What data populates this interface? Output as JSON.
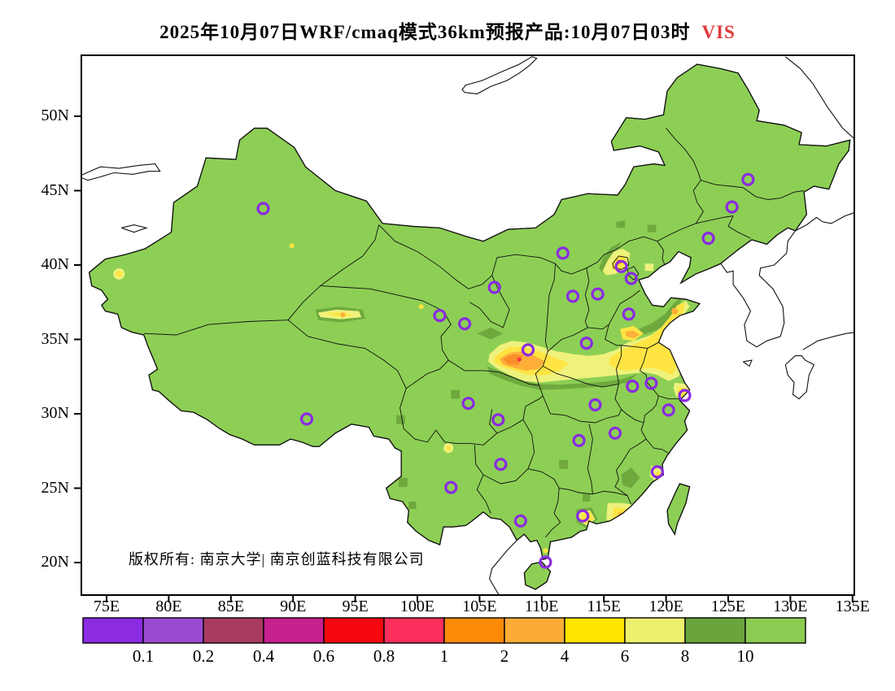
{
  "title": {
    "main": "2025年10月07日WRF/cmaq模式36km预报产品:10月07日03时",
    "tag": "VIS",
    "tag_color": "#e03a3a"
  },
  "copyright": "版权所有: 南京大学| 南京创蓝科技有限公司",
  "axes": {
    "lat_ticks": [
      {
        "label": "50N",
        "lat": 50
      },
      {
        "label": "45N",
        "lat": 45
      },
      {
        "label": "40N",
        "lat": 40
      },
      {
        "label": "35N",
        "lat": 35
      },
      {
        "label": "30N",
        "lat": 30
      },
      {
        "label": "25N",
        "lat": 25
      },
      {
        "label": "20N",
        "lat": 20
      }
    ],
    "lon_ticks": [
      {
        "label": "75E",
        "lon": 75
      },
      {
        "label": "80E",
        "lon": 80
      },
      {
        "label": "85E",
        "lon": 85
      },
      {
        "label": "90E",
        "lon": 90
      },
      {
        "label": "95E",
        "lon": 95
      },
      {
        "label": "100E",
        "lon": 100
      },
      {
        "label": "105E",
        "lon": 105
      },
      {
        "label": "110E",
        "lon": 110
      },
      {
        "label": "115E",
        "lon": 115
      },
      {
        "label": "120E",
        "lon": 120
      },
      {
        "label": "125E",
        "lon": 125
      },
      {
        "label": "130E",
        "lon": 130
      },
      {
        "label": "135E",
        "lon": 135
      }
    ]
  },
  "colorbar": {
    "labels": [
      "0.1",
      "0.2",
      "0.4",
      "0.6",
      "0.8",
      "1",
      "2",
      "4",
      "6",
      "8",
      "10"
    ],
    "colors": [
      "#8b2be2",
      "#9b4ad2",
      "#a93a62",
      "#c71f8e",
      "#f5070f",
      "#fb2e5c",
      "#fb8b07",
      "#fbac38",
      "#ffe400",
      "#edf06e",
      "#69a53c",
      "#8ccb52"
    ]
  },
  "map_colors": {
    "sea": "#ffffff",
    "land": "#8dcf55",
    "level_8_10": "#6fa93e",
    "level_6_8": "#eef27c",
    "level_4_6": "#ffe443",
    "level_2_4": "#fdaf3a",
    "level_1_2": "#f98e27",
    "level_lt_1": "#f4304a",
    "coast_border": "#111111",
    "marker": "#8a2be2"
  },
  "stations": [
    {
      "name": "urumqi",
      "lon": 87.6,
      "lat": 43.8
    },
    {
      "name": "harbin",
      "lon": 126.6,
      "lat": 45.75
    },
    {
      "name": "changchun",
      "lon": 125.3,
      "lat": 43.9
    },
    {
      "name": "shenyang",
      "lon": 123.4,
      "lat": 41.8
    },
    {
      "name": "beijing",
      "lon": 116.4,
      "lat": 39.9
    },
    {
      "name": "tianjin",
      "lon": 117.2,
      "lat": 39.1
    },
    {
      "name": "shijiazhuang",
      "lon": 114.5,
      "lat": 38.05
    },
    {
      "name": "taiyuan",
      "lon": 112.5,
      "lat": 37.9
    },
    {
      "name": "hohhot",
      "lon": 111.7,
      "lat": 40.8
    },
    {
      "name": "jinan",
      "lon": 117.0,
      "lat": 36.7
    },
    {
      "name": "zhengzhou",
      "lon": 113.6,
      "lat": 34.75
    },
    {
      "name": "xian",
      "lon": 108.9,
      "lat": 34.3
    },
    {
      "name": "yinchuan",
      "lon": 106.2,
      "lat": 38.5
    },
    {
      "name": "lanzhou",
      "lon": 103.8,
      "lat": 36.05
    },
    {
      "name": "xining",
      "lon": 101.8,
      "lat": 36.6
    },
    {
      "name": "lhasa",
      "lon": 91.1,
      "lat": 29.65
    },
    {
      "name": "chengdu",
      "lon": 104.1,
      "lat": 30.7
    },
    {
      "name": "chongqing",
      "lon": 106.5,
      "lat": 29.6
    },
    {
      "name": "wuhan",
      "lon": 114.3,
      "lat": 30.6
    },
    {
      "name": "hefei",
      "lon": 117.3,
      "lat": 31.85
    },
    {
      "name": "nanjing",
      "lon": 118.8,
      "lat": 32.05
    },
    {
      "name": "shanghai",
      "lon": 121.5,
      "lat": 31.23
    },
    {
      "name": "hangzhou",
      "lon": 120.2,
      "lat": 30.25
    },
    {
      "name": "nanchang",
      "lon": 115.9,
      "lat": 28.7
    },
    {
      "name": "changsha",
      "lon": 113.0,
      "lat": 28.2
    },
    {
      "name": "guiyang",
      "lon": 106.7,
      "lat": 26.6
    },
    {
      "name": "kunming",
      "lon": 102.7,
      "lat": 25.05
    },
    {
      "name": "fuzhou",
      "lon": 119.3,
      "lat": 26.1
    },
    {
      "name": "nanning",
      "lon": 108.3,
      "lat": 22.8
    },
    {
      "name": "guangzhou",
      "lon": 113.3,
      "lat": 23.13
    },
    {
      "name": "haikou",
      "lon": 110.3,
      "lat": 20.03
    }
  ]
}
